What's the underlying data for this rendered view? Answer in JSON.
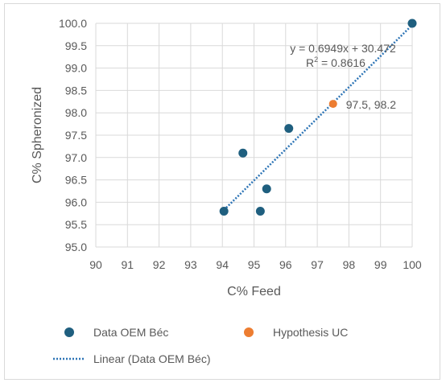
{
  "chart_data": {
    "type": "scatter",
    "xlabel": "C% Feed",
    "ylabel": "C% Spheronized",
    "xlim": [
      90,
      100
    ],
    "ylim": [
      95.0,
      100.0
    ],
    "x_ticks": [
      "90",
      "91",
      "92",
      "93",
      "94",
      "95",
      "96",
      "97",
      "98",
      "99",
      "100"
    ],
    "y_ticks": [
      "95.0",
      "95.5",
      "96.0",
      "96.5",
      "97.0",
      "97.5",
      "98.0",
      "98.5",
      "99.0",
      "99.5",
      "100.0"
    ],
    "grid": true,
    "legend_position": "bottom",
    "series": [
      {
        "name": "Data OEM Béc",
        "color": "#1f5f7f",
        "points": [
          {
            "x": 94.05,
            "y": 95.8
          },
          {
            "x": 94.65,
            "y": 97.1
          },
          {
            "x": 95.2,
            "y": 95.8
          },
          {
            "x": 95.4,
            "y": 96.3
          },
          {
            "x": 96.1,
            "y": 97.65
          },
          {
            "x": 100.0,
            "y": 100.0
          }
        ]
      },
      {
        "name": "Hypothesis UC",
        "color": "#ed7d31",
        "points": [
          {
            "x": 97.5,
            "y": 98.2
          }
        ],
        "data_label": "97.5, 98.2"
      }
    ],
    "trendline": {
      "name": "Linear (Data OEM Béc)",
      "color": "#2e75b6",
      "slope": 0.6949,
      "intercept": 30.472,
      "x_from": 94.05,
      "x_to": 100.0,
      "equation_label": "y = 0.6949x + 30.472",
      "r2_prefix": "R",
      "r2_sup": "2",
      "r2_value": " = 0.8616"
    }
  }
}
